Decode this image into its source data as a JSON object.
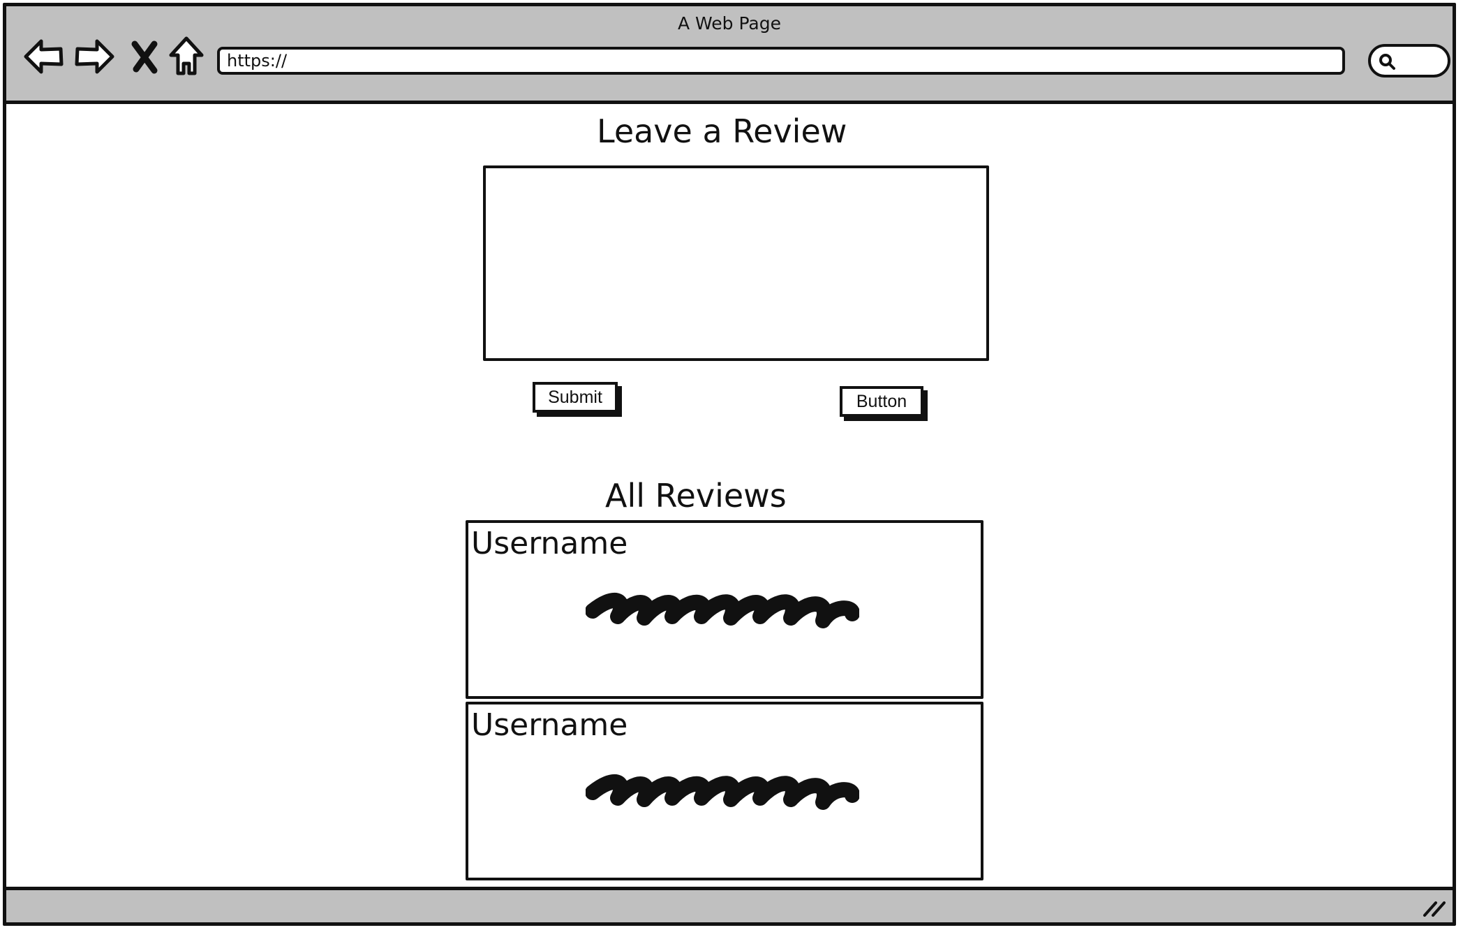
{
  "window": {
    "title": "A Web Page"
  },
  "toolbar": {
    "back_icon": "back-arrow-icon",
    "forward_icon": "forward-arrow-icon",
    "stop_icon": "close-icon",
    "home_icon": "home-icon",
    "url": "https://",
    "search_icon": "search-icon"
  },
  "form": {
    "heading": "Leave a Review",
    "textarea_value": "",
    "submit_label": "Submit",
    "secondary_label": "Button"
  },
  "reviews": {
    "heading": "All Reviews",
    "items": [
      {
        "username": "Username"
      },
      {
        "username": "Username"
      }
    ]
  },
  "statusbar": {
    "grip_icon": "resize-grip-icon"
  },
  "colors": {
    "chrome": "#c0c0c0",
    "ink": "#111111",
    "page": "#ffffff"
  }
}
